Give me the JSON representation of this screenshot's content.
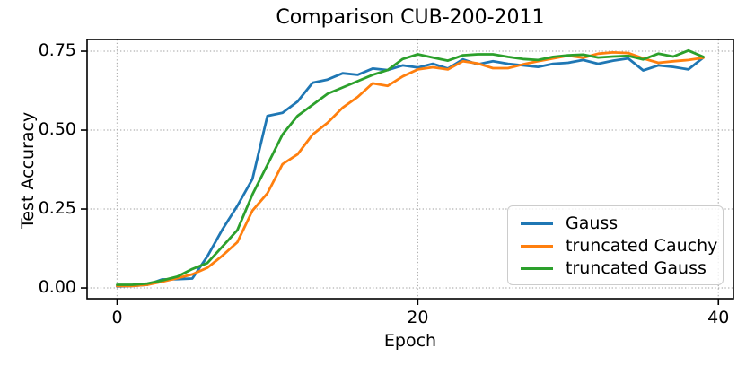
{
  "chart_data": {
    "type": "line",
    "title": "Comparison CUB-200-2011",
    "xlabel": "Epoch",
    "ylabel": "Test Accuracy",
    "x_ticks": [
      0,
      20,
      40
    ],
    "y_ticks": [
      "0.00",
      "0.25",
      "0.50",
      "0.75"
    ],
    "xlim": [
      -2,
      41
    ],
    "ylim": [
      -0.034,
      0.787
    ],
    "grid": "dotted",
    "legend_position": "lower right",
    "x": [
      0,
      1,
      2,
      3,
      4,
      5,
      6,
      7,
      8,
      9,
      10,
      11,
      12,
      13,
      14,
      15,
      16,
      17,
      18,
      19,
      20,
      21,
      22,
      23,
      24,
      25,
      26,
      27,
      28,
      29,
      30,
      31,
      32,
      33,
      34,
      35,
      36,
      37,
      38,
      39
    ],
    "series": [
      {
        "name": "Gauss",
        "color": "#1f77b4",
        "values": [
          0.005,
          0.006,
          0.01,
          0.027,
          0.028,
          0.03,
          0.1,
          0.185,
          0.26,
          0.345,
          0.545,
          0.555,
          0.59,
          0.65,
          0.66,
          0.68,
          0.675,
          0.695,
          0.69,
          0.705,
          0.698,
          0.71,
          0.695,
          0.724,
          0.708,
          0.718,
          0.71,
          0.705,
          0.7,
          0.71,
          0.713,
          0.722,
          0.71,
          0.72,
          0.727,
          0.689,
          0.705,
          0.7,
          0.692,
          0.73
        ]
      },
      {
        "name": "truncated Cauchy",
        "color": "#ff7f0e",
        "values": [
          0.006,
          0.006,
          0.01,
          0.02,
          0.031,
          0.043,
          0.064,
          0.102,
          0.145,
          0.245,
          0.3,
          0.392,
          0.423,
          0.486,
          0.523,
          0.571,
          0.605,
          0.648,
          0.64,
          0.67,
          0.692,
          0.699,
          0.692,
          0.718,
          0.711,
          0.696,
          0.696,
          0.708,
          0.718,
          0.727,
          0.736,
          0.729,
          0.742,
          0.746,
          0.744,
          0.727,
          0.713,
          0.718,
          0.722,
          0.729
        ]
      },
      {
        "name": "truncated Gauss",
        "color": "#2ca02c",
        "values": [
          0.01,
          0.01,
          0.014,
          0.024,
          0.036,
          0.06,
          0.079,
          0.131,
          0.183,
          0.296,
          0.39,
          0.486,
          0.545,
          0.58,
          0.615,
          0.635,
          0.655,
          0.675,
          0.69,
          0.725,
          0.74,
          0.73,
          0.72,
          0.737,
          0.74,
          0.74,
          0.732,
          0.725,
          0.722,
          0.732,
          0.737,
          0.739,
          0.73,
          0.733,
          0.735,
          0.724,
          0.742,
          0.733,
          0.752,
          0.732
        ]
      }
    ]
  },
  "colors": {
    "background": "#ffffff",
    "axis": "#000000",
    "grid": "#b0b0b0",
    "text": "#000000",
    "legend_border": "#cccccc"
  }
}
